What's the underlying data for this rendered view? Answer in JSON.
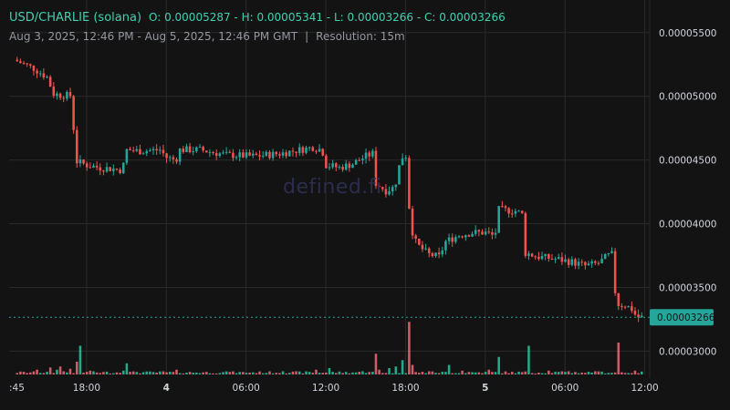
{
  "header": {
    "pair": "USD/CHARLIE (solana)",
    "ohlc": "O: 0.00005287 - H: 0.00005341 - L: 0.00003266 - C: 0.00003266",
    "range": "Aug 3, 2025, 12:46 PM - Aug 5, 2025, 12:46 PM GMT",
    "separator": "|",
    "resolution": "Resolution: 15m"
  },
  "watermark": "defined.fi",
  "colors": {
    "up": "#26a69a",
    "down": "#ef5350",
    "upVol": "#26c6a0",
    "downVol": "#f06b7a",
    "grid": "#2a2a2a",
    "label_bg": "#26a69a"
  },
  "chart_data": {
    "type": "candlestick",
    "y_ticks": [
      "0.00005500",
      "0.00005000",
      "0.00004500",
      "0.00004000",
      "0.00003500",
      "0.00003000"
    ],
    "y_tick_values": [
      5.5e-05,
      5e-05,
      4.5e-05,
      4e-05,
      3.5e-05,
      3e-05
    ],
    "y_range": [
      2.91e-05,
      5.67e-05
    ],
    "x_ticks": [
      ":45",
      "18:00",
      "4",
      "06:00",
      "12:00",
      "18:00",
      "5",
      "06:00",
      "12:00"
    ],
    "x_tick_hours": [
      -0.25,
      5.23,
      11.23,
      17.23,
      23.23,
      29.23,
      35.23,
      41.23,
      47.23
    ],
    "x_bold": [
      false,
      false,
      true,
      false,
      false,
      false,
      true,
      false,
      false
    ],
    "last_price": 3.266e-05,
    "last_label": "0.00003266",
    "path_points": [
      [
        0,
        5.287e-05
      ],
      [
        1.5,
        5.22e-05
      ],
      [
        2.5,
        5.15e-05
      ],
      [
        3.0,
        5.02e-05
      ],
      [
        3.5,
        5.01e-05
      ],
      [
        4.3,
        5.005e-05
      ],
      [
        4.5,
        4.75e-05
      ],
      [
        4.7,
        4.49e-05
      ],
      [
        5.5,
        4.46e-05
      ],
      [
        6.5,
        4.44e-05
      ],
      [
        7.5,
        4.43e-05
      ],
      [
        8.2,
        4.42e-05
      ],
      [
        8.4,
        4.58e-05
      ],
      [
        9.5,
        4.57e-05
      ],
      [
        11.0,
        4.58e-05
      ],
      [
        11.5,
        4.52e-05
      ],
      [
        12.2,
        4.5e-05
      ],
      [
        12.5,
        4.58e-05
      ],
      [
        14.0,
        4.58e-05
      ],
      [
        16.0,
        4.54e-05
      ],
      [
        18.0,
        4.53e-05
      ],
      [
        20.0,
        4.55e-05
      ],
      [
        21.5,
        4.58e-05
      ],
      [
        22.5,
        4.6e-05
      ],
      [
        23.2,
        4.58e-05
      ],
      [
        23.5,
        4.46e-05
      ],
      [
        24.5,
        4.44e-05
      ],
      [
        25.5,
        4.47e-05
      ],
      [
        26.5,
        4.53e-05
      ],
      [
        27.0,
        4.55e-05
      ],
      [
        27.2,
        4.32e-05
      ],
      [
        28.0,
        4.26e-05
      ],
      [
        28.5,
        4.28e-05
      ],
      [
        28.8,
        4.34e-05
      ],
      [
        29.0,
        4.45e-05
      ],
      [
        29.3,
        4.54e-05
      ],
      [
        29.6,
        4.53e-05
      ],
      [
        29.8,
        4e-05
      ],
      [
        30.3,
        3.84e-05
      ],
      [
        31.2,
        3.76e-05
      ],
      [
        32.0,
        3.74e-05
      ],
      [
        32.5,
        3.86e-05
      ],
      [
        33.5,
        3.91e-05
      ],
      [
        34.5,
        3.93e-05
      ],
      [
        35.5,
        3.93e-05
      ],
      [
        36.2,
        3.9e-05
      ],
      [
        36.5,
        4.11e-05
      ],
      [
        37.8,
        4.1e-05
      ],
      [
        38.3,
        4.07e-05
      ],
      [
        38.5,
        3.77e-05
      ],
      [
        39.5,
        3.74e-05
      ],
      [
        41.0,
        3.72e-05
      ],
      [
        42.0,
        3.7e-05
      ],
      [
        43.0,
        3.67e-05
      ],
      [
        44.0,
        3.69e-05
      ],
      [
        44.7,
        3.75e-05
      ],
      [
        45.1,
        3.76e-05
      ],
      [
        45.3,
        3.37e-05
      ],
      [
        46.0,
        3.36e-05
      ],
      [
        46.5,
        3.33e-05
      ],
      [
        46.8,
        3.28e-05
      ],
      [
        47.0,
        3.266e-05
      ]
    ],
    "volume_spikes": [
      [
        1.5,
        0.15
      ],
      [
        2.5,
        0.22
      ],
      [
        3.0,
        0.15
      ],
      [
        3.3,
        0.25
      ],
      [
        3.6,
        0.1
      ],
      [
        4.0,
        0.18
      ],
      [
        4.5,
        0.4
      ],
      [
        4.7,
        0.9
      ],
      [
        5.5,
        0.12
      ],
      [
        8.0,
        0.12
      ],
      [
        8.3,
        0.35
      ],
      [
        9.0,
        0.08
      ],
      [
        11.0,
        0.1
      ],
      [
        12.0,
        0.15
      ],
      [
        16.0,
        0.08
      ],
      [
        20.0,
        0.1
      ],
      [
        22.5,
        0.15
      ],
      [
        23.5,
        0.2
      ],
      [
        26.0,
        0.1
      ],
      [
        27.0,
        0.65
      ],
      [
        27.3,
        0.15
      ],
      [
        28.0,
        0.2
      ],
      [
        28.5,
        0.25
      ],
      [
        29.0,
        0.45
      ],
      [
        29.5,
        1.65
      ],
      [
        29.8,
        0.3
      ],
      [
        31.0,
        0.1
      ],
      [
        32.5,
        0.3
      ],
      [
        33.5,
        0.12
      ],
      [
        34.0,
        0.08
      ],
      [
        35.5,
        0.15
      ],
      [
        36.2,
        0.55
      ],
      [
        38.5,
        0.9
      ],
      [
        40.0,
        0.12
      ],
      [
        41.5,
        0.1
      ],
      [
        43.5,
        0.1
      ],
      [
        45.2,
        1.0
      ],
      [
        46.5,
        0.12
      ]
    ]
  }
}
